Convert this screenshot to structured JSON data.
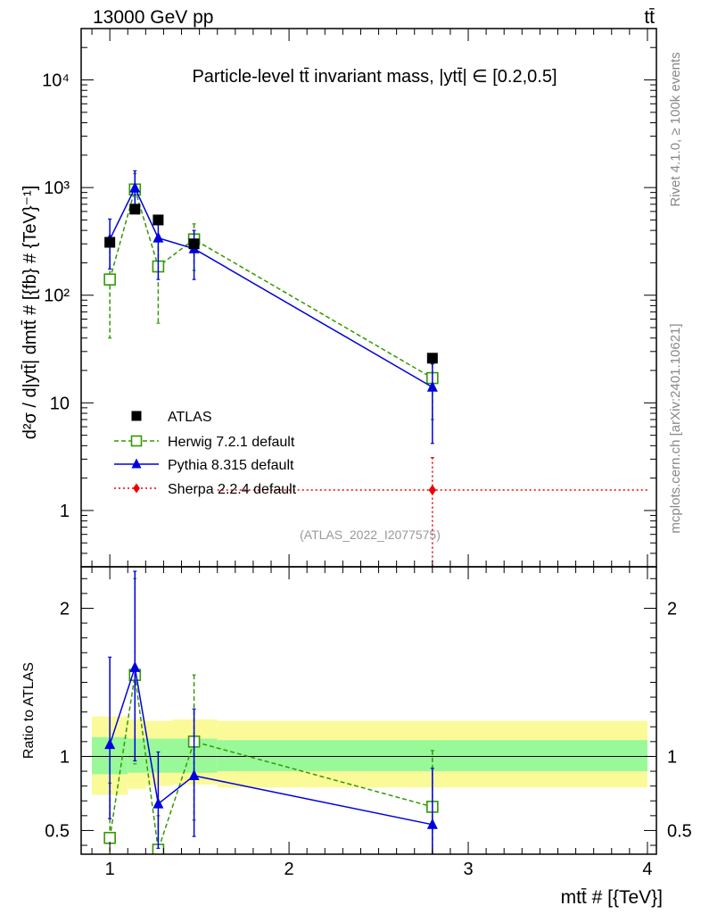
{
  "header": {
    "energy_label": "13000 GeV pp",
    "process_label": "tt̄"
  },
  "side_text": {
    "rivet": "Rivet 4.1.0, ≥ 100k events",
    "mcplots": "mcplots.cern.ch [arXiv:2401.10621]"
  },
  "colors": {
    "atlas": "#000000",
    "herwig": "#339900",
    "pythia": "#0000dd",
    "sherpa": "#ee0000",
    "band_inner": "#99f999",
    "band_outer": "#fafa99"
  },
  "chart_data": [
    {
      "type": "scatter",
      "panel": "main",
      "title": "Particle-level tt̄ invariant mass, |ytt̄| ∈ [0.2,0.5]",
      "analysis_tag": "(ATLAS_2022_I2077575)",
      "ylabel": "d²σ / d|ytt̄| dmtt̄ # [{fb} # {TeV}⁻¹]",
      "xlabel": "mtt̄ # [{TeV}]",
      "yscale": "log",
      "ylim": [
        0.3,
        30000
      ],
      "xlim": [
        0.84,
        4.05
      ],
      "y_tick_labels": [
        "1",
        "10",
        "10²",
        "10³",
        "10⁴"
      ],
      "legend": [
        "ATLAS",
        "Herwig 7.2.1 default",
        "Pythia 8.315 default",
        "Sherpa 2.2.4 default"
      ],
      "legend_position": "middle-left",
      "series": [
        {
          "name": "ATLAS",
          "key": "atlas",
          "marker": "square-filled",
          "line": "none",
          "x": [
            1.0,
            1.14,
            1.27,
            1.47,
            2.8
          ],
          "y": [
            310,
            630,
            500,
            300,
            26
          ],
          "yerr_low": [
            null,
            null,
            null,
            null,
            null
          ],
          "yerr_high": [
            null,
            null,
            null,
            null,
            null
          ]
        },
        {
          "name": "Herwig 7.2.1 default",
          "key": "herwig",
          "marker": "square-open",
          "line": "dashed",
          "x": [
            1.0,
            1.14,
            1.27,
            1.47,
            2.8
          ],
          "y": [
            140,
            960,
            185,
            330,
            17
          ],
          "yerr_low": [
            40,
            600,
            55,
            170,
            7
          ],
          "yerr_high": [
            310,
            1350,
            330,
            460,
            27
          ]
        },
        {
          "name": "Pythia 8.315 default",
          "key": "pythia",
          "marker": "triangle-filled",
          "line": "solid",
          "x": [
            1.0,
            1.14,
            1.27,
            1.47,
            2.8
          ],
          "y": [
            330,
            990,
            340,
            270,
            14
          ],
          "yerr_low": [
            175,
            600,
            140,
            140,
            4.2
          ],
          "yerr_high": [
            510,
            1430,
            540,
            400,
            23
          ]
        },
        {
          "name": "Sherpa 2.2.4 default",
          "key": "sherpa",
          "marker": "diamond-filled",
          "line": "dotted",
          "x": [
            2.8
          ],
          "y": [
            1.55
          ],
          "xerr_low": [
            1.6
          ],
          "xerr_high": [
            4.0
          ],
          "yerr_low": [
            0.3
          ],
          "yerr_high": [
            3.1
          ]
        }
      ]
    },
    {
      "type": "line",
      "panel": "ratio",
      "ylabel": "Ratio to ATLAS",
      "xlabel": "mtt̄ # [{TeV}]",
      "ylim": [
        0.34,
        2.28
      ],
      "xlim": [
        0.84,
        4.05
      ],
      "x_ticks": [
        1,
        2,
        3,
        4
      ],
      "x_tick_labels": [
        "1",
        "2",
        "3",
        "4"
      ],
      "y_ticks": [
        0.5,
        1,
        2
      ],
      "y_tick_labels": [
        "0.5",
        "1",
        "2"
      ],
      "reference_line": 1,
      "uncertainty_bands": {
        "edges": [
          0.9,
          1.1,
          1.2,
          1.35,
          1.6,
          4.0
        ],
        "inner_low": [
          0.88,
          0.89,
          0.89,
          0.89,
          0.9
        ],
        "inner_high": [
          1.13,
          1.12,
          1.12,
          1.12,
          1.11
        ],
        "outer_low": [
          0.74,
          0.78,
          0.8,
          0.81,
          0.79
        ],
        "outer_high": [
          1.27,
          1.25,
          1.24,
          1.25,
          1.24
        ]
      },
      "series": [
        {
          "name": "Herwig 7.2.1 default",
          "key": "herwig",
          "line": "dashed",
          "marker": "square-open",
          "x": [
            1.0,
            1.14,
            1.27,
            1.47,
            2.8
          ],
          "y": [
            0.45,
            1.55,
            0.37,
            1.1,
            0.66
          ],
          "yerr_low": [
            0.34,
            0.95,
            0.34,
            0.57,
            0.28
          ],
          "yerr_high": [
            0.82,
            2.2,
            0.6,
            1.55,
            1.04
          ]
        },
        {
          "name": "Pythia 8.315 default",
          "key": "pythia",
          "line": "solid",
          "marker": "triangle-filled",
          "x": [
            1.0,
            1.14,
            1.27,
            1.47,
            2.8
          ],
          "y": [
            1.08,
            1.6,
            0.68,
            0.87,
            0.54
          ],
          "yerr_low": [
            0.58,
            0.97,
            0.38,
            0.46,
            0.34
          ],
          "yerr_high": [
            1.67,
            2.25,
            1.03,
            1.32,
            0.92
          ]
        }
      ]
    }
  ]
}
